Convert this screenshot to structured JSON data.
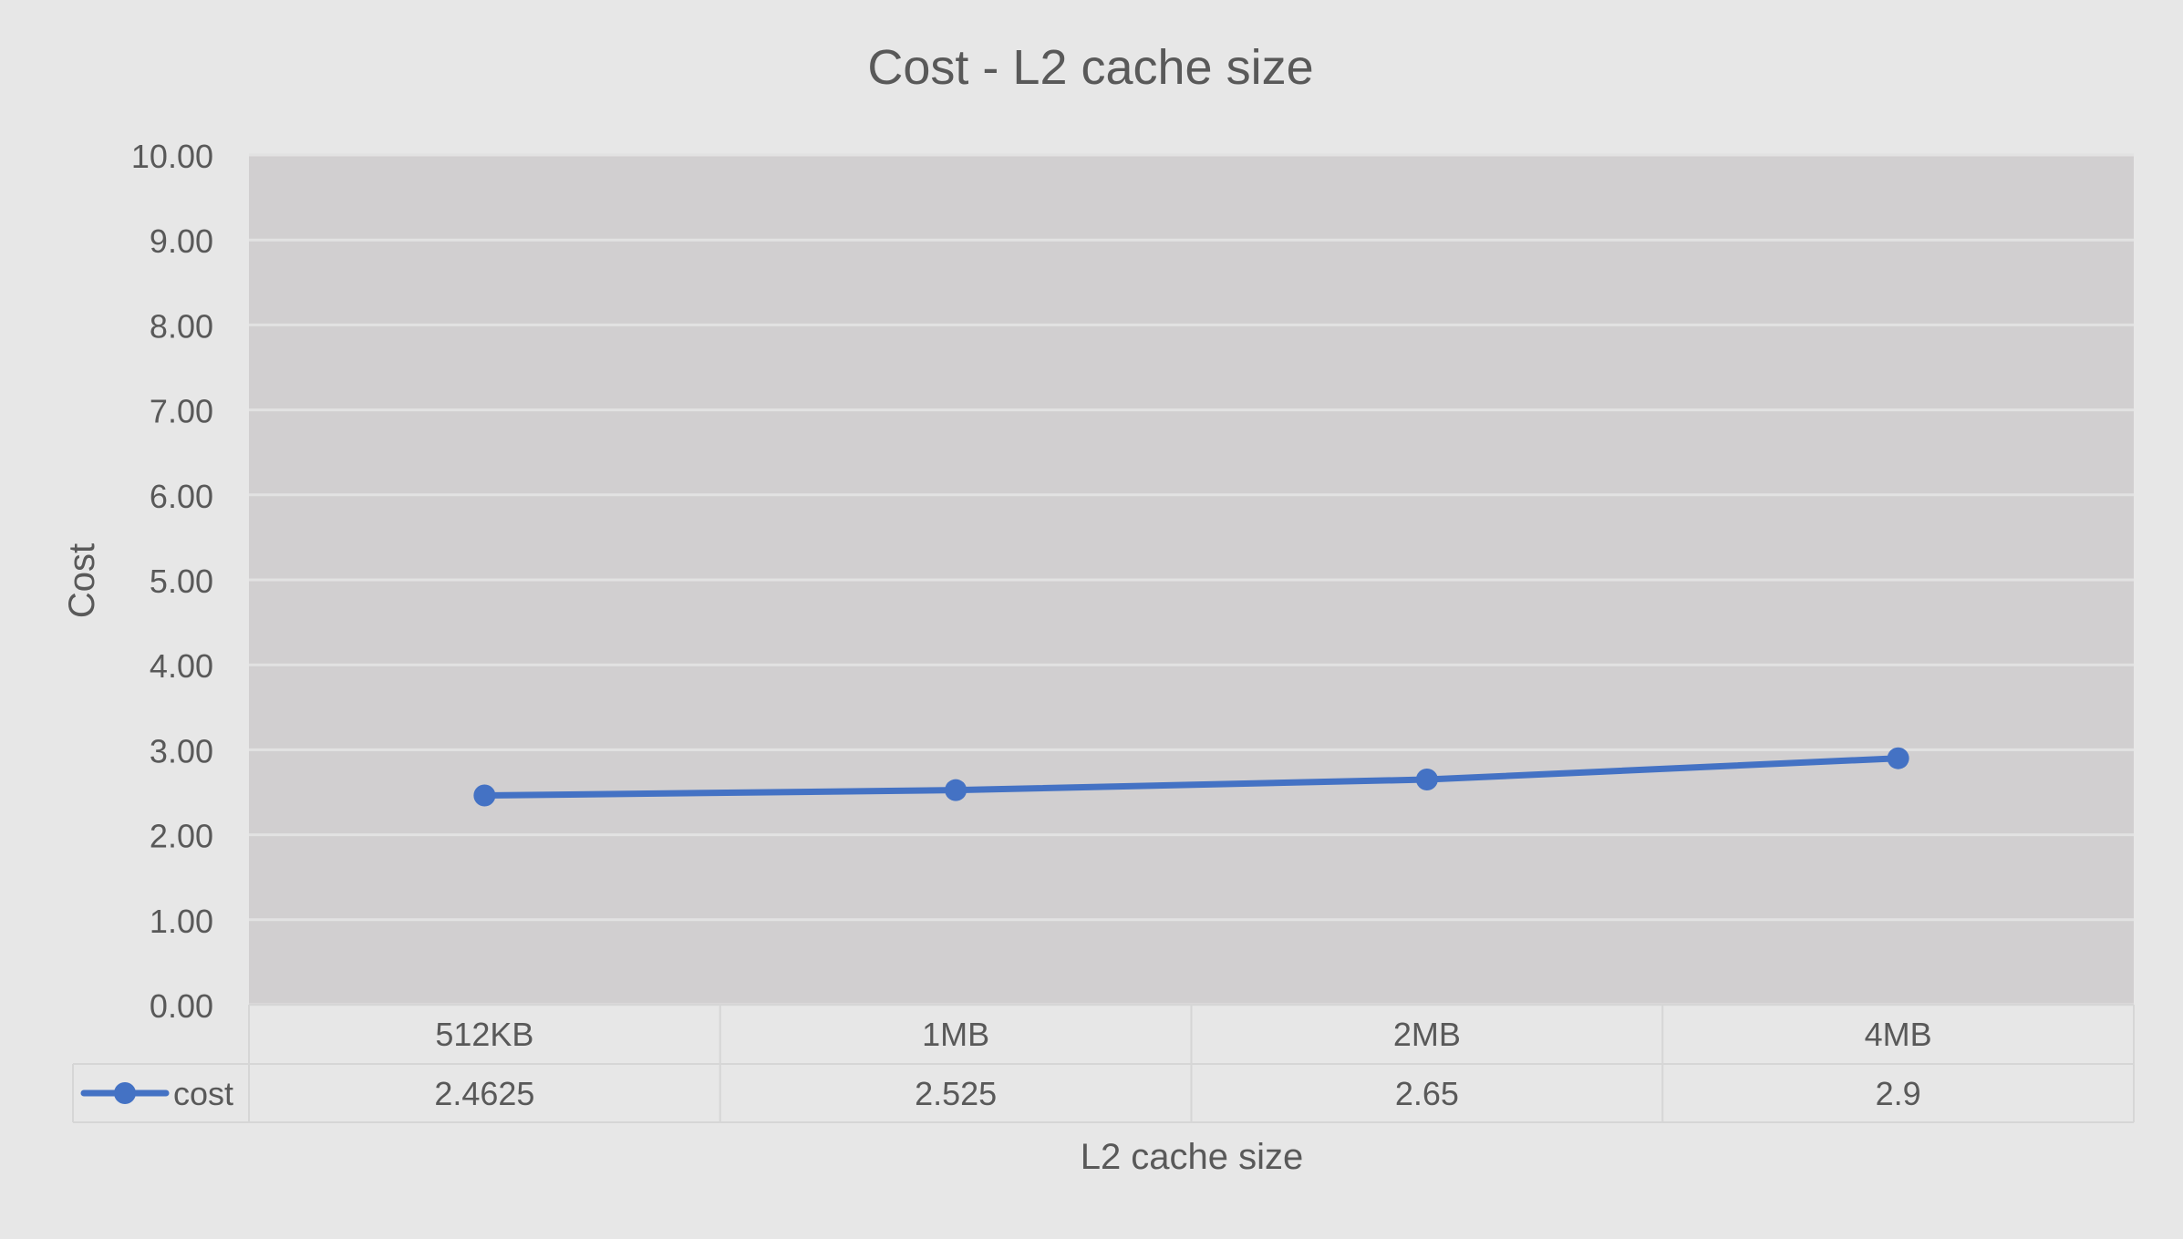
{
  "chart_data": {
    "type": "line",
    "title": "Cost - L2 cache size",
    "xlabel": "L2 cache size",
    "ylabel": "Cost",
    "categories": [
      "512KB",
      "1MB",
      "2MB",
      "4MB"
    ],
    "ylim": [
      0,
      10
    ],
    "yticks": [
      "0.00",
      "1.00",
      "2.00",
      "3.00",
      "4.00",
      "5.00",
      "6.00",
      "7.00",
      "8.00",
      "9.00",
      "10.00"
    ],
    "grid": true,
    "legend": "data-table",
    "series": [
      {
        "name": "cost",
        "values": [
          2.4625,
          2.525,
          2.65,
          2.9
        ],
        "value_labels": [
          "2.4625",
          "2.525",
          "2.65",
          "2.9"
        ],
        "color": "#4472c4"
      }
    ],
    "colors": {
      "background": "#e7e7e7",
      "plot_area": "#d1cfd0",
      "gridline": "#e2e2e2",
      "text": "#595959",
      "table_border": "#d6d6d6"
    }
  }
}
